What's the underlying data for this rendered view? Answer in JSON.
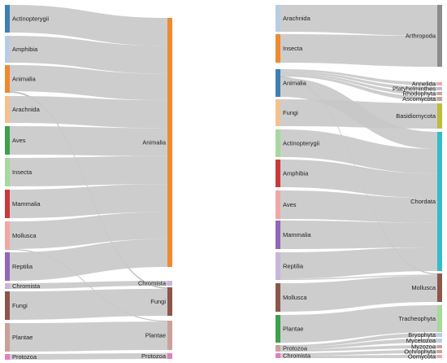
{
  "colors": {
    "link": "#c8c8c8",
    "blue": "#3f7fb3",
    "lightblue": "#b7cde7",
    "orange": "#ef8a2e",
    "peach": "#f5c08e",
    "green": "#3fa04a",
    "lightgreen": "#a6d99a",
    "red": "#c9393b",
    "pink": "#f2a6a4",
    "purple": "#9266b8",
    "lavender": "#c9b5da",
    "brown": "#8c564b",
    "tan": "#c9a199",
    "magenta": "#e27fc3",
    "gray": "#8c8c8c",
    "olive": "#bcbd3a",
    "cyan": "#33bccc",
    "lightcyan": "#a7dce8"
  },
  "left": {
    "sources": [
      {
        "name": "Actinopterygii",
        "value": 9,
        "color": "blue"
      },
      {
        "name": "Amphibia",
        "value": 9,
        "color": "lightblue"
      },
      {
        "name": "Animalia",
        "value": 9,
        "color": "orange"
      },
      {
        "name": "Arachnida",
        "value": 9,
        "color": "peach"
      },
      {
        "name": "Aves",
        "value": 9,
        "color": "green"
      },
      {
        "name": "Insecta",
        "value": 9,
        "color": "lightgreen"
      },
      {
        "name": "Mammalia",
        "value": 9,
        "color": "red"
      },
      {
        "name": "Mollusca",
        "value": 9,
        "color": "pink"
      },
      {
        "name": "Reptilia",
        "value": 9,
        "color": "purple"
      },
      {
        "name": "Chromista",
        "value": 1.6,
        "color": "lavender"
      },
      {
        "name": "Fungi",
        "value": 9,
        "color": "brown"
      },
      {
        "name": "Plantae",
        "value": 9,
        "color": "tan"
      },
      {
        "name": "Protozoa",
        "value": 1.6,
        "color": "magenta"
      }
    ],
    "targets": [
      {
        "name": "Animalia",
        "color": "orange"
      },
      {
        "name": "Chromista",
        "color": "lavender"
      },
      {
        "name": "Fungi",
        "color": "brown"
      },
      {
        "name": "Plantae",
        "color": "tan"
      },
      {
        "name": "Protozoa",
        "color": "magenta"
      }
    ],
    "links": [
      {
        "source": "Actinopterygii",
        "target": "Animalia",
        "value": 9
      },
      {
        "source": "Amphibia",
        "target": "Animalia",
        "value": 9
      },
      {
        "source": "Animalia",
        "target": "Animalia",
        "value": 8.5
      },
      {
        "source": "Animalia",
        "target": "Fungi",
        "value": 0.5
      },
      {
        "source": "Arachnida",
        "target": "Animalia",
        "value": 9
      },
      {
        "source": "Aves",
        "target": "Animalia",
        "value": 9
      },
      {
        "source": "Insecta",
        "target": "Animalia",
        "value": 9
      },
      {
        "source": "Mammalia",
        "target": "Animalia",
        "value": 9
      },
      {
        "source": "Mollusca",
        "target": "Animalia",
        "value": 8.7
      },
      {
        "source": "Mollusca",
        "target": "Plantae",
        "value": 0.3
      },
      {
        "source": "Reptilia",
        "target": "Animalia",
        "value": 9
      },
      {
        "source": "Chromista",
        "target": "Chromista",
        "value": 1.6
      },
      {
        "source": "Fungi",
        "target": "Fungi",
        "value": 9
      },
      {
        "source": "Plantae",
        "target": "Plantae",
        "value": 9
      },
      {
        "source": "Protozoa",
        "target": "Protozoa",
        "value": 1.6
      }
    ]
  },
  "right": {
    "sources": [
      {
        "name": "Arachnida",
        "value": 9,
        "color": "lightblue"
      },
      {
        "name": "Insecta",
        "value": 9,
        "color": "orange"
      },
      {
        "name": "Animalia",
        "value": 9,
        "color": "blue"
      },
      {
        "name": "Fungi",
        "value": 9,
        "color": "peach"
      },
      {
        "name": "Actinopterygii",
        "value": 9,
        "color": "lightgreen"
      },
      {
        "name": "Amphibia",
        "value": 9,
        "color": "red"
      },
      {
        "name": "Aves",
        "value": 9,
        "color": "pink"
      },
      {
        "name": "Mammalia",
        "value": 9,
        "color": "purple"
      },
      {
        "name": "Reptilia",
        "value": 9,
        "color": "lavender"
      },
      {
        "name": "Mollusca",
        "value": 9,
        "color": "brown"
      },
      {
        "name": "Plantae",
        "value": 9,
        "color": "green"
      },
      {
        "name": "Protozoa",
        "value": 1.8,
        "color": "tan"
      },
      {
        "name": "Chromista",
        "value": 1.2,
        "color": "magenta"
      }
    ],
    "targets": [
      {
        "name": "Arthropoda",
        "color": "gray"
      },
      {
        "name": "Annelida",
        "color": "pink"
      },
      {
        "name": "Platyhelminthes",
        "color": "lavender"
      },
      {
        "name": "Rhodophyta",
        "color": "tan"
      },
      {
        "name": "Ascomycota",
        "color": "tan"
      },
      {
        "name": "Basidiomycota",
        "color": "olive"
      },
      {
        "name": "Chordata",
        "color": "cyan"
      },
      {
        "name": "Mollusca",
        "color": "brown"
      },
      {
        "name": "Tracheophyta",
        "color": "lightgreen"
      },
      {
        "name": "Bryophyta",
        "color": "lightblue"
      },
      {
        "name": "Mycetozoa",
        "color": "lightblue"
      },
      {
        "name": "Myzozoa",
        "color": "tan"
      },
      {
        "name": "Ochrophyta",
        "color": "tan"
      },
      {
        "name": "Oomycota",
        "color": "pink"
      }
    ],
    "links": [
      {
        "source": "Arachnida",
        "target": "Arthropoda",
        "value": 9
      },
      {
        "source": "Insecta",
        "target": "Arthropoda",
        "value": 9
      },
      {
        "source": "Animalia",
        "target": "Annelida",
        "value": 0.6
      },
      {
        "source": "Animalia",
        "target": "Platyhelminthes",
        "value": 0.6
      },
      {
        "source": "Animalia",
        "target": "Rhodophyta",
        "value": 0.6
      },
      {
        "source": "Animalia",
        "target": "Ascomycota",
        "value": 0.6
      },
      {
        "source": "Animalia",
        "target": "Mollusca",
        "value": 0.4
      },
      {
        "source": "Animalia",
        "target": "Chordata",
        "value": 6.2
      },
      {
        "source": "Fungi",
        "target": "Basidiomycota",
        "value": 9
      },
      {
        "source": "Actinopterygii",
        "target": "Chordata",
        "value": 9
      },
      {
        "source": "Amphibia",
        "target": "Chordata",
        "value": 9
      },
      {
        "source": "Aves",
        "target": "Chordata",
        "value": 9
      },
      {
        "source": "Mammalia",
        "target": "Chordata",
        "value": 9
      },
      {
        "source": "Reptilia",
        "target": "Chordata",
        "value": 8.6
      },
      {
        "source": "Reptilia",
        "target": "Mollusca",
        "value": 0.4
      },
      {
        "source": "Mollusca",
        "target": "Mollusca",
        "value": 9
      },
      {
        "source": "Plantae",
        "target": "Tracheophyta",
        "value": 9
      },
      {
        "source": "Protozoa",
        "target": "Bryophyta",
        "value": 0.6
      },
      {
        "source": "Protozoa",
        "target": "Mycetozoa",
        "value": 0.6
      },
      {
        "source": "Protozoa",
        "target": "Myzozoa",
        "value": 0.6
      },
      {
        "source": "Chromista",
        "target": "Ochrophyta",
        "value": 0.6
      },
      {
        "source": "Chromista",
        "target": "Oomycota",
        "value": 0.6
      }
    ]
  }
}
